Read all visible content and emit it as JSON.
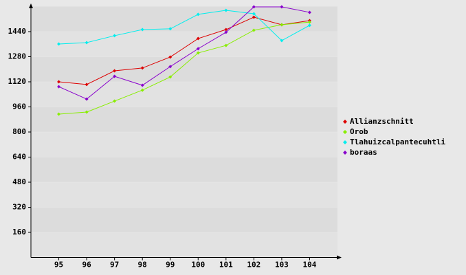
{
  "chart_data": {
    "type": "line",
    "categories": [
      "95",
      "96",
      "97",
      "98",
      "99",
      "100",
      "101",
      "102",
      "103",
      "104"
    ],
    "series": [
      {
        "name": "Allianzschnitt",
        "color": "#dd0000",
        "values": [
          1120,
          1103,
          1190,
          1208,
          1278,
          1396,
          1453,
          1532,
          1484,
          1510
        ]
      },
      {
        "name": "Orob",
        "color": "#88ee00",
        "values": [
          914,
          927,
          997,
          1067,
          1151,
          1304,
          1352,
          1449,
          1484,
          1501
        ]
      },
      {
        "name": "Tlahuizcalpantecuhtli",
        "color": "#00eeee",
        "values": [
          1361,
          1370,
          1414,
          1453,
          1458,
          1550,
          1576,
          1554,
          1383,
          1480
        ]
      },
      {
        "name": "boraas",
        "color": "#8800cc",
        "values": [
          1089,
          1010,
          1155,
          1098,
          1217,
          1331,
          1436,
          1598,
          1598,
          1563
        ]
      }
    ],
    "ylim": [
      0,
      1600
    ],
    "yticks": [
      160,
      320,
      480,
      640,
      800,
      960,
      1120,
      1280,
      1440
    ],
    "grid": true
  }
}
